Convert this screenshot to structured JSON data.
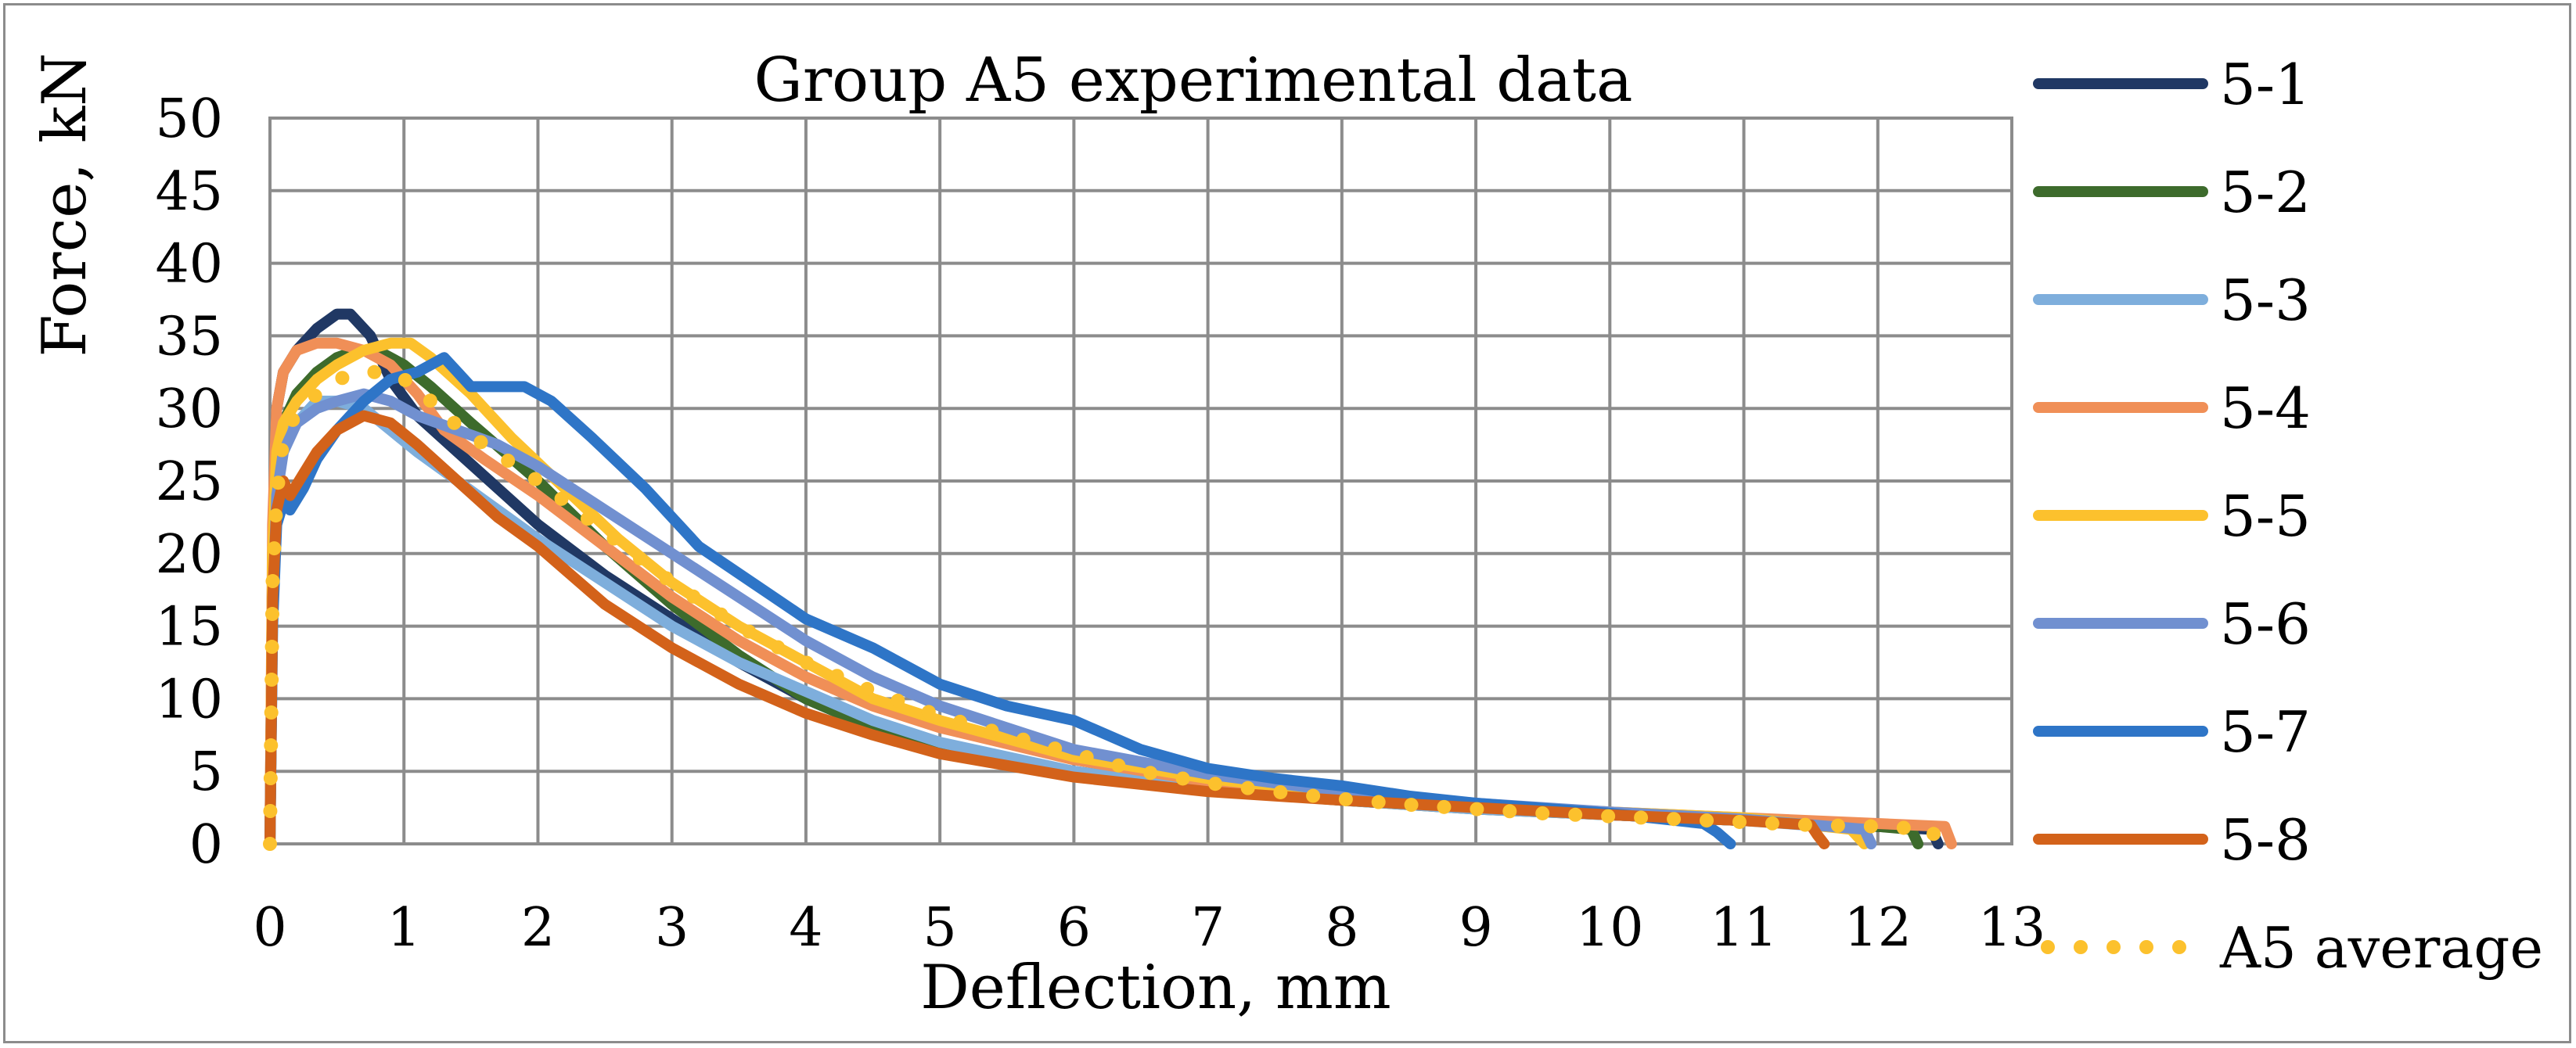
{
  "chart_data": {
    "type": "line",
    "title": "Group A5 experimental data",
    "xlabel": "Deflection, mm",
    "ylabel": "Force, kN",
    "xlim": [
      0,
      13
    ],
    "ylim": [
      0,
      50
    ],
    "xticks": [
      0,
      1,
      2,
      3,
      4,
      5,
      6,
      7,
      8,
      9,
      10,
      11,
      12,
      13
    ],
    "yticks": [
      0,
      5,
      10,
      15,
      20,
      25,
      30,
      35,
      40,
      45,
      50
    ],
    "grid": true,
    "legend_position": "right",
    "series": [
      {
        "name": "5-1",
        "color": "#203864",
        "style": "solid",
        "x": [
          0,
          0.02,
          0.05,
          0.1,
          0.2,
          0.35,
          0.5,
          0.6,
          0.75,
          0.9,
          1.1,
          1.4,
          1.7,
          2.0,
          2.5,
          3.0,
          3.5,
          4.0,
          4.5,
          5.0,
          6.0,
          7.0,
          8.0,
          9.0,
          10.0,
          11.0,
          12.0,
          12.4,
          12.45
        ],
        "y": [
          0,
          20,
          30,
          32.5,
          34,
          35.5,
          36.5,
          36.5,
          35,
          32,
          29.5,
          27,
          24.5,
          22,
          18.5,
          15.5,
          12.5,
          10,
          8,
          6.5,
          5,
          3.8,
          3,
          2.5,
          2,
          1.6,
          1.2,
          1,
          0
        ]
      },
      {
        "name": "5-2",
        "color": "#3d6b2c",
        "style": "solid",
        "x": [
          0,
          0.02,
          0.05,
          0.1,
          0.2,
          0.35,
          0.5,
          0.65,
          0.8,
          1.0,
          1.2,
          1.5,
          2.0,
          2.5,
          3.0,
          3.5,
          4.0,
          4.5,
          5.0,
          6.0,
          7.0,
          8.0,
          9.0,
          10.0,
          11.0,
          12.0,
          12.25,
          12.3
        ],
        "y": [
          0,
          18,
          26,
          29,
          31,
          32.5,
          33.5,
          34,
          34,
          33,
          31.5,
          29,
          25,
          20.5,
          16.5,
          13,
          10,
          8,
          6.5,
          4.8,
          3.7,
          3,
          2.4,
          2,
          1.6,
          1.2,
          1,
          0
        ]
      },
      {
        "name": "5-3",
        "color": "#7eaedc",
        "style": "solid",
        "x": [
          0,
          0.02,
          0.05,
          0.1,
          0.2,
          0.35,
          0.5,
          0.7,
          0.9,
          1.1,
          1.4,
          1.7,
          2.0,
          2.5,
          3.0,
          3.5,
          4.0,
          4.5,
          5.0,
          6.0,
          7.0,
          8.0,
          9.0,
          10.0,
          11.0,
          11.9,
          11.95
        ],
        "y": [
          0,
          17,
          25,
          27.5,
          29,
          30.5,
          30.5,
          30,
          28.5,
          27,
          25,
          23,
          21,
          18,
          15,
          12.5,
          10.5,
          8.5,
          7,
          5,
          3.8,
          3,
          2.4,
          2,
          1.6,
          1,
          0
        ]
      },
      {
        "name": "5-4",
        "color": "#f08f57",
        "style": "solid",
        "x": [
          0,
          0.02,
          0.05,
          0.1,
          0.2,
          0.35,
          0.5,
          0.7,
          0.9,
          1.1,
          1.3,
          1.6,
          2.0,
          2.5,
          3.0,
          3.5,
          4.0,
          4.5,
          5.0,
          6.0,
          7.0,
          8.0,
          9.0,
          10.0,
          11.0,
          12.0,
          12.5,
          12.55
        ],
        "y": [
          0,
          22,
          30,
          32.5,
          34,
          34.5,
          34.5,
          34,
          33,
          31,
          28.5,
          26.5,
          24,
          20.5,
          17,
          14,
          11.5,
          9.5,
          8,
          5.8,
          4.3,
          3.4,
          2.7,
          2.2,
          1.8,
          1.4,
          1.2,
          0
        ]
      },
      {
        "name": "5-5",
        "color": "#fcc12d",
        "style": "solid",
        "x": [
          0,
          0.02,
          0.05,
          0.1,
          0.2,
          0.35,
          0.5,
          0.7,
          0.9,
          1.05,
          1.2,
          1.5,
          1.8,
          2.2,
          2.6,
          3.0,
          3.5,
          4.0,
          4.5,
          5.0,
          6.0,
          7.0,
          8.0,
          9.0,
          10.0,
          11.0,
          11.8,
          11.9
        ],
        "y": [
          0,
          20,
          27,
          29,
          30.5,
          32,
          33,
          34,
          34.5,
          34.5,
          33.5,
          31,
          28,
          24.5,
          21,
          18,
          15,
          12.5,
          10,
          8.5,
          6,
          4.5,
          3.5,
          2.7,
          2.2,
          1.8,
          1,
          0
        ]
      },
      {
        "name": "5-6",
        "color": "#7190d0",
        "style": "solid",
        "x": [
          0,
          0.02,
          0.05,
          0.1,
          0.2,
          0.35,
          0.5,
          0.7,
          0.9,
          1.1,
          1.4,
          1.7,
          2.0,
          2.5,
          3.0,
          3.5,
          4.0,
          4.5,
          5.0,
          6.0,
          7.0,
          8.0,
          9.0,
          10.0,
          11.0,
          11.9,
          11.95
        ],
        "y": [
          0,
          16,
          24,
          27,
          29,
          30,
          30.5,
          31,
          30.5,
          29.5,
          28.5,
          27.5,
          26,
          23,
          20,
          17,
          14,
          11.5,
          9.5,
          6.5,
          4.8,
          3.6,
          2.8,
          2.2,
          1.7,
          1,
          0
        ]
      },
      {
        "name": "5-7",
        "color": "#2e75c7",
        "style": "solid",
        "x": [
          0,
          0.02,
          0.05,
          0.1,
          0.15,
          0.25,
          0.35,
          0.5,
          0.7,
          0.9,
          1.1,
          1.3,
          1.4,
          1.5,
          1.7,
          1.9,
          2.1,
          2.4,
          2.8,
          3.2,
          3.6,
          4.0,
          4.5,
          5.0,
          5.5,
          6.0,
          6.5,
          7.0,
          7.5,
          8.0,
          8.5,
          9.0,
          10.0,
          10.7,
          10.8,
          10.9
        ],
        "y": [
          0,
          15,
          22,
          23.5,
          23,
          24.5,
          26.5,
          28.5,
          30.5,
          32,
          32.5,
          33.5,
          32.5,
          31.5,
          31.5,
          31.5,
          30.5,
          28,
          24.5,
          20.5,
          18,
          15.5,
          13.5,
          11,
          9.5,
          8.5,
          6.5,
          5.2,
          4.5,
          4,
          3.3,
          2.8,
          2.1,
          1.4,
          0.8,
          0
        ]
      },
      {
        "name": "5-8",
        "color": "#d3621a",
        "style": "solid",
        "x": [
          0,
          0.02,
          0.05,
          0.1,
          0.15,
          0.25,
          0.35,
          0.5,
          0.7,
          0.9,
          1.1,
          1.4,
          1.7,
          2.0,
          2.5,
          3.0,
          3.5,
          4.0,
          4.5,
          5.0,
          6.0,
          7.0,
          8.0,
          9.0,
          10.0,
          11.0,
          11.5,
          11.55,
          11.6
        ],
        "y": [
          0,
          17,
          23,
          25,
          24,
          25.5,
          27,
          28.5,
          29.5,
          29,
          27.5,
          25,
          22.5,
          20.5,
          16.5,
          13.5,
          11,
          9,
          7.5,
          6.2,
          4.6,
          3.6,
          3,
          2.5,
          2,
          1.6,
          1.3,
          0.6,
          0
        ]
      },
      {
        "name": "A5 average",
        "color": "#fcc12d",
        "style": "dotted",
        "x": [
          0,
          0.02,
          0.05,
          0.1,
          0.15,
          0.25,
          0.35,
          0.5,
          0.7,
          0.9,
          1.1,
          1.3,
          1.6,
          2.0,
          2.5,
          3.0,
          3.5,
          4.0,
          4.5,
          5.0,
          5.5,
          6.0,
          6.5,
          7.0,
          7.5,
          8.0,
          8.5,
          9.0,
          9.5,
          10.0,
          10.5,
          11.0,
          11.5,
          12.0,
          12.4,
          12.45
        ],
        "y": [
          0,
          18,
          24,
          28,
          29,
          30,
          31,
          32,
          32.5,
          32.5,
          31.5,
          29.5,
          27.5,
          25,
          21.5,
          18,
          15,
          12.5,
          10.5,
          8.8,
          7.5,
          6.2,
          5,
          4.2,
          3.6,
          3.1,
          2.7,
          2.4,
          2.1,
          1.9,
          1.7,
          1.5,
          1.3,
          1.2,
          1,
          0
        ]
      }
    ]
  }
}
